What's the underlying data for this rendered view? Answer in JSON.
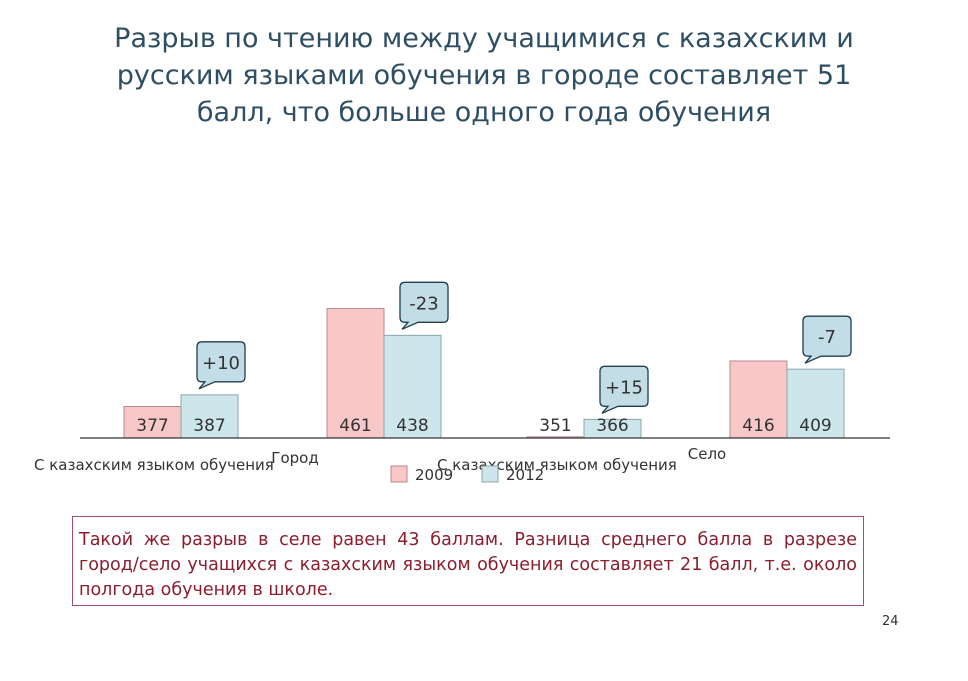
{
  "title_lines": [
    "Разрыв по чтению между учащимися с казахским и",
    "русским языками обучения в городе составляет 51",
    "балл, что больше одного года обучения"
  ],
  "chart_data": {
    "type": "bar",
    "categories": [
      "С казахским языком обучения",
      "Город",
      "С казахским языком обучения",
      "Село"
    ],
    "series": [
      {
        "name": "2009",
        "values": [
          377,
          461,
          351,
          416
        ]
      },
      {
        "name": "2012",
        "values": [
          387,
          438,
          366,
          409
        ]
      }
    ],
    "value_labels": [
      [
        "377",
        "461",
        "351",
        "416"
      ],
      [
        "387",
        "438",
        "366",
        "409"
      ]
    ],
    "change_labels": [
      "+10",
      "-23",
      "+15",
      "-7"
    ],
    "ylim": [
      350,
      500
    ],
    "grid": false,
    "legend_position": "bottom",
    "colors": {
      "series_2009": "#f8c7c8",
      "series_2012": "#cde6ec",
      "callout_fill": "#c2dde6",
      "callout_border": "#1f3e50"
    }
  },
  "note": "Такой же разрыв в селе равен 43 баллам. Разница среднего балла в разрезе город/село учащихся с казахским языком обучения составляет 21 балл, т.е. около полгода обучения в школе.",
  "page_number": "24"
}
